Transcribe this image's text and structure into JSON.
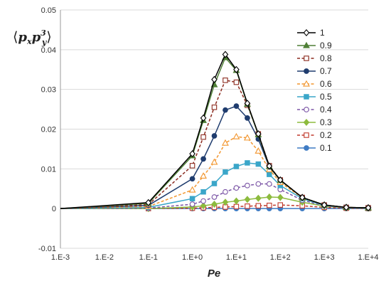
{
  "chart_data": {
    "type": "line",
    "title": "",
    "xlabel": "Pe",
    "ylabel": {
      "open": "⟨",
      "close": "⟩",
      "term1": "p",
      "sub1": "x",
      "term2": "p",
      "sub2": "y",
      "sup2": "3"
    },
    "x_scale": "log",
    "xlim": [
      0.001,
      10000
    ],
    "ylim": [
      -0.01,
      0.05
    ],
    "x_ticks": [
      "1.E-3",
      "1.E-2",
      "1.E-1",
      "1.E+0",
      "1.E+1",
      "1.E+2",
      "1.E+3",
      "1.E+4"
    ],
    "y_ticks": [
      "0.05",
      "0.04",
      "0.03",
      "0.02",
      "0.01",
      "0",
      "-0.01"
    ],
    "y_tick_values": [
      0.05,
      0.04,
      0.03,
      0.02,
      0.01,
      0,
      -0.01
    ],
    "grid": {
      "horizontal": true,
      "vertical": false
    },
    "legend_position": "right",
    "x": [
      0.001,
      0.1,
      1,
      1.78,
      3.16,
      5.62,
      10,
      17.8,
      31.6,
      56.2,
      100,
      316,
      1000,
      3160,
      10000
    ],
    "series": [
      {
        "name": "1",
        "color": "#000000",
        "marker": "diamond-open",
        "dash": "solid",
        "values": [
          0,
          0.0015,
          0.0138,
          0.0228,
          0.0325,
          0.0388,
          0.035,
          0.0265,
          0.0188,
          0.0107,
          0.0072,
          0.0028,
          0.0009,
          0.0003,
          0.0002
        ]
      },
      {
        "name": "0.9",
        "color": "#4f7f36",
        "marker": "triangle-filled",
        "dash": "solid",
        "values": [
          0,
          0.0013,
          0.0133,
          0.0222,
          0.0312,
          0.038,
          0.0348,
          0.0263,
          0.0186,
          0.0106,
          0.0071,
          0.0028,
          0.0009,
          0.0003,
          0.0002
        ]
      },
      {
        "name": "0.8",
        "color": "#8b2a1e",
        "marker": "square-open",
        "dash": "dashed",
        "values": [
          0,
          0.001,
          0.0108,
          0.018,
          0.0255,
          0.0323,
          0.0318,
          0.026,
          0.0188,
          0.0108,
          0.0072,
          0.0028,
          0.0009,
          0.0003,
          0.0002
        ]
      },
      {
        "name": "0.7",
        "color": "#1f3c6e",
        "marker": "circle-filled",
        "dash": "solid",
        "values": [
          0,
          0.0008,
          0.0075,
          0.0125,
          0.0183,
          0.0248,
          0.0258,
          0.0228,
          0.0175,
          0.0105,
          0.0071,
          0.0028,
          0.0009,
          0.0003,
          0.0002
        ]
      },
      {
        "name": "0.6",
        "color": "#f2962f",
        "marker": "triangle-open",
        "dash": "dashed",
        "values": [
          0,
          0.0005,
          0.0047,
          0.0082,
          0.0117,
          0.0165,
          0.0181,
          0.0178,
          0.0145,
          0.0098,
          0.0066,
          0.0027,
          0.0009,
          0.0003,
          0.0002
        ]
      },
      {
        "name": "0.5",
        "color": "#3aa6c9",
        "marker": "square-filled",
        "dash": "solid",
        "values": [
          0,
          0.0003,
          0.0025,
          0.0042,
          0.0063,
          0.0092,
          0.0106,
          0.0115,
          0.0112,
          0.0086,
          0.0058,
          0.0025,
          0.0008,
          0.0003,
          0.0001
        ]
      },
      {
        "name": "0.4",
        "color": "#7b55a6",
        "marker": "circle-open",
        "dash": "dashed",
        "values": [
          0,
          0.0001,
          0.0011,
          0.0019,
          0.0029,
          0.0042,
          0.0052,
          0.0058,
          0.0062,
          0.0062,
          0.0048,
          0.0021,
          0.0007,
          0.0002,
          0.0001
        ]
      },
      {
        "name": "0.3",
        "color": "#8dbb3e",
        "marker": "diamond-filled",
        "dash": "solid",
        "values": [
          0,
          0,
          0.0004,
          0.0007,
          0.0011,
          0.0016,
          0.0019,
          0.0023,
          0.0026,
          0.0029,
          0.0028,
          0.0016,
          0.0006,
          0.0002,
          0.0001
        ]
      },
      {
        "name": "0.2",
        "color": "#c0392b",
        "marker": "square-open",
        "dash": "dashed",
        "values": [
          0,
          0,
          0.0001,
          0.0002,
          0.0003,
          0.0004,
          0.0005,
          0.0006,
          0.0007,
          0.0008,
          0.0009,
          0.0007,
          0.0003,
          0.0001,
          0
        ]
      },
      {
        "name": "0.1",
        "color": "#3f7cc4",
        "marker": "circle-filled",
        "dash": "solid",
        "values": [
          0,
          0,
          0,
          0,
          0,
          0,
          0,
          0,
          0,
          0,
          0,
          0,
          0,
          0,
          0
        ]
      }
    ]
  }
}
